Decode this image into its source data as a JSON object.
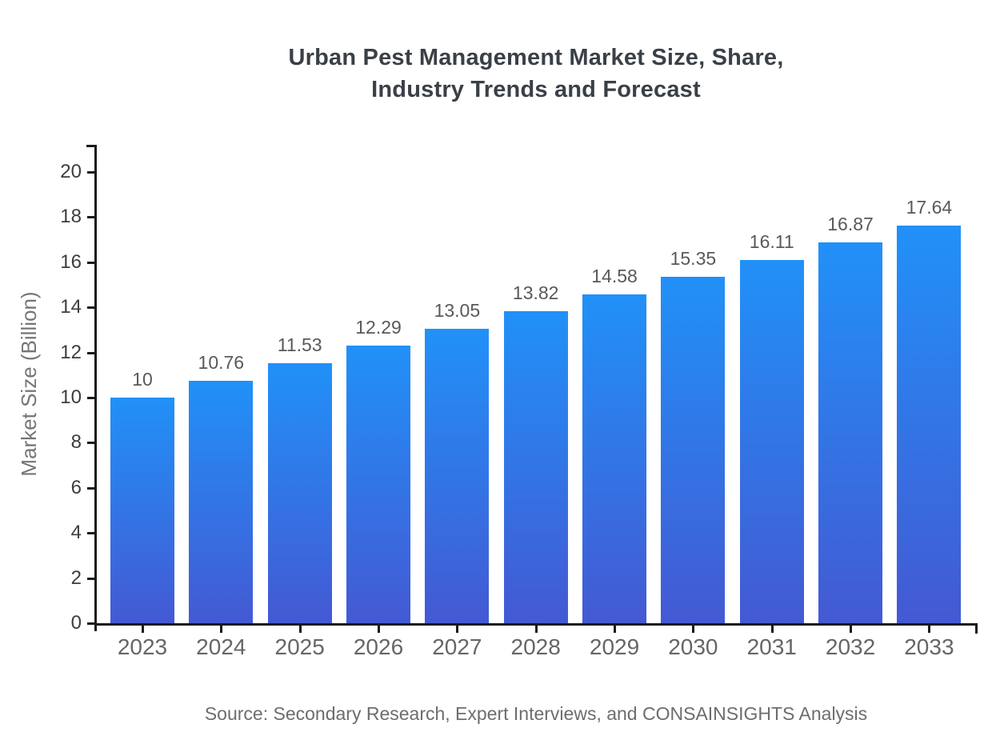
{
  "chart_data": {
    "type": "bar",
    "title": "Urban Pest Management Market Size, Share, Industry Trends and Forecast",
    "title_lines": [
      "Urban Pest Management Market Size, Share,",
      "Industry Trends and Forecast"
    ],
    "categories": [
      "2023",
      "2024",
      "2025",
      "2026",
      "2027",
      "2028",
      "2029",
      "2030",
      "2031",
      "2032",
      "2033"
    ],
    "values": [
      10,
      10.76,
      11.53,
      12.29,
      13.05,
      13.82,
      14.58,
      15.35,
      16.11,
      16.87,
      17.64
    ],
    "value_labels": [
      "10",
      "10.76",
      "11.53",
      "12.29",
      "13.05",
      "13.82",
      "14.58",
      "15.35",
      "16.11",
      "16.87",
      "17.64"
    ],
    "xlabel": "",
    "ylabel": "Market Size (Billion)",
    "ylim": [
      0,
      20
    ],
    "yticks": [
      0,
      2,
      4,
      6,
      8,
      10,
      12,
      14,
      16,
      18,
      20
    ],
    "grid": false,
    "legend": "none",
    "source": "Source: Secondary Research, Expert Interviews, and CONSAINSIGHTS Analysis",
    "colors": {
      "bar_gradient_top": "#2191f8",
      "bar_gradient_bottom": "#4459d3",
      "axis": "#1a1a1a",
      "title": "#3a4047",
      "value_label": "#595959",
      "x_tick_label": "#666666",
      "y_tick_label": "#3d3d3d",
      "y_axis_title": "#757575",
      "source_text": "#6d6d6d"
    }
  }
}
